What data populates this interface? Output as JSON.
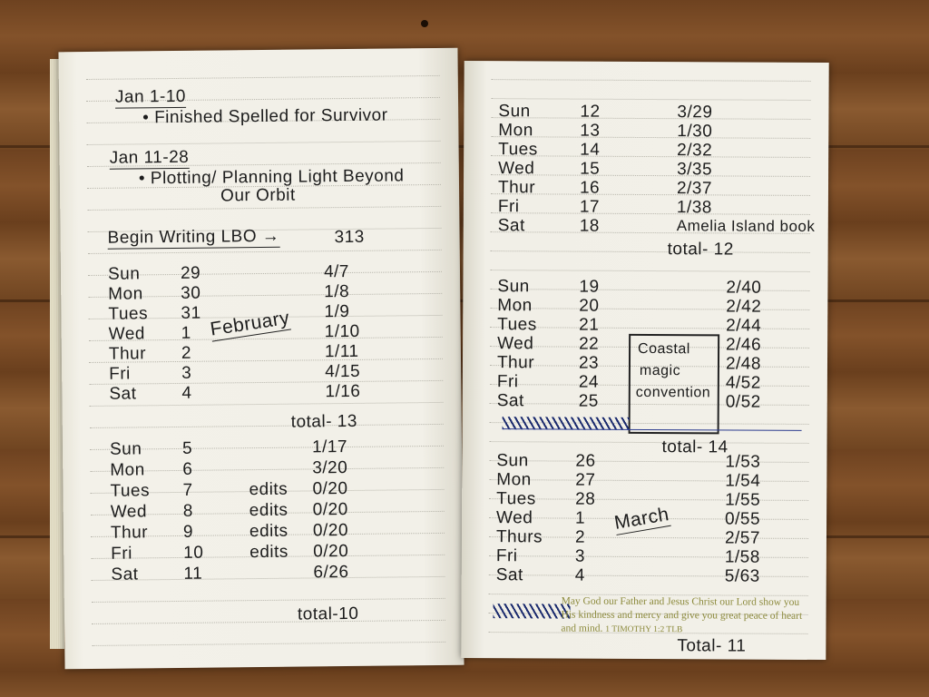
{
  "left_page": {
    "heading1": "Jan 1-10",
    "note1": "• Finished Spelled for Survivor",
    "heading2": "Jan 11-28",
    "note2a": "• Plotting/ Planning Light Beyond",
    "note2b": "Our Orbit",
    "begin_label": "Begin Writing LBO →",
    "begin_count": "313",
    "week1": [
      {
        "day": "Sun",
        "date": "29",
        "count": "4/7"
      },
      {
        "day": "Mon",
        "date": "30",
        "count": "1/8"
      },
      {
        "day": "Tues",
        "date": "31",
        "count": "1/9"
      },
      {
        "day": "Wed",
        "date": "1",
        "count": "1/10"
      },
      {
        "day": "Thur",
        "date": "2",
        "count": "1/11"
      },
      {
        "day": "Fri",
        "date": "3",
        "count": "4/15"
      },
      {
        "day": "Sat",
        "date": "4",
        "count": "1/16"
      }
    ],
    "month_label": "February",
    "week1_total": "total- 13",
    "week2": [
      {
        "day": "Sun",
        "date": "5",
        "note": "",
        "count": "1/17"
      },
      {
        "day": "Mon",
        "date": "6",
        "note": "",
        "count": "3/20"
      },
      {
        "day": "Tues",
        "date": "7",
        "note": "edits",
        "count": "0/20"
      },
      {
        "day": "Wed",
        "date": "8",
        "note": "edits",
        "count": "0/20"
      },
      {
        "day": "Thur",
        "date": "9",
        "note": "edits",
        "count": "0/20"
      },
      {
        "day": "Fri",
        "date": "10",
        "note": "edits",
        "count": "0/20"
      },
      {
        "day": "Sat",
        "date": "11",
        "note": "",
        "count": "6/26"
      }
    ],
    "week2_total": "total-10"
  },
  "right_page": {
    "week3": [
      {
        "day": "Sun",
        "date": "12",
        "count": "3/29"
      },
      {
        "day": "Mon",
        "date": "13",
        "count": "1/30"
      },
      {
        "day": "Tues",
        "date": "14",
        "count": "2/32"
      },
      {
        "day": "Wed",
        "date": "15",
        "count": "3/35"
      },
      {
        "day": "Thur",
        "date": "16",
        "count": "2/37"
      },
      {
        "day": "Fri",
        "date": "17",
        "count": "1/38"
      },
      {
        "day": "Sat",
        "date": "18",
        "count": "Amelia Island book"
      }
    ],
    "week3_total": "total- 12",
    "week4": [
      {
        "day": "Sun",
        "date": "19",
        "count": "2/40"
      },
      {
        "day": "Mon",
        "date": "20",
        "count": "2/42"
      },
      {
        "day": "Tues",
        "date": "21",
        "count": "2/44"
      },
      {
        "day": "Wed",
        "date": "22",
        "count": "2/46"
      },
      {
        "day": "Thur",
        "date": "23",
        "count": "2/48"
      },
      {
        "day": "Fri",
        "date": "24",
        "count": "4/52"
      },
      {
        "day": "Sat",
        "date": "25",
        "count": "0/52"
      }
    ],
    "box_note": [
      "Coastal",
      "magic",
      "convention"
    ],
    "week4_total": "total- 14",
    "week5": [
      {
        "day": "Sun",
        "date": "26",
        "count": "1/53"
      },
      {
        "day": "Mon",
        "date": "27",
        "count": "1/54"
      },
      {
        "day": "Tues",
        "date": "28",
        "count": "1/55"
      },
      {
        "day": "Wed",
        "date": "1",
        "count": "0/55"
      },
      {
        "day": "Thurs",
        "date": "2",
        "count": "2/57"
      },
      {
        "day": "Fri",
        "date": "3",
        "count": "1/58"
      },
      {
        "day": "Sat",
        "date": "4",
        "count": "5/63"
      }
    ],
    "month_label": "March",
    "week5_total": "Total- 11",
    "verse": "May God our Father and Jesus Christ our Lord show you His kindness and mercy and give you great peace of heart and mind.",
    "verse_ref": "1 TIMOTHY 1:2 TLB"
  },
  "colors": {
    "wood": "#7a4a22",
    "paper": "#f1efe6",
    "ink": "#1c1c1c",
    "blue_ink": "#1a2a6e",
    "verse": "#8c8a3c"
  }
}
